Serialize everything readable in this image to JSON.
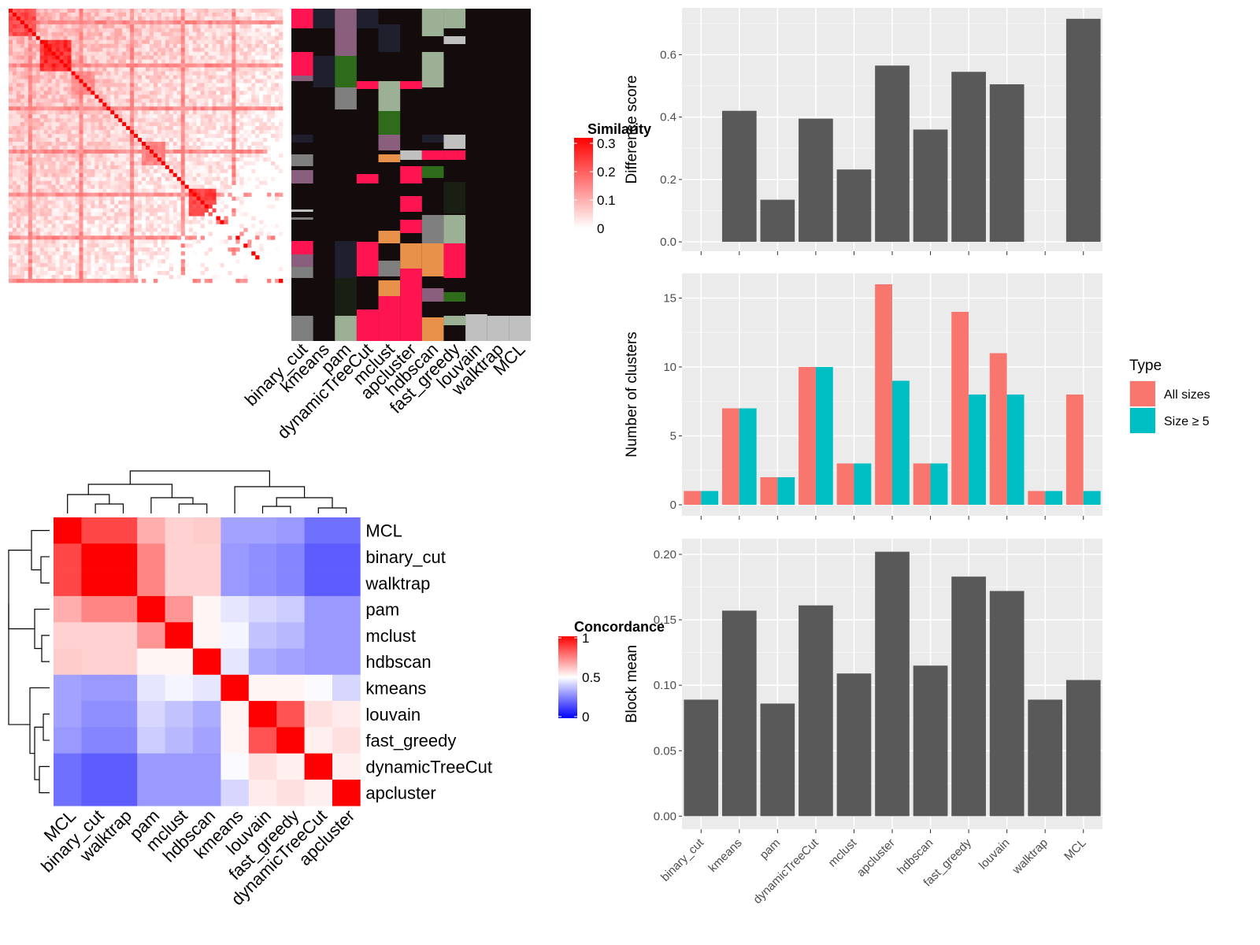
{
  "methods": [
    "binary_cut",
    "kmeans",
    "pam",
    "dynamicTreeCut",
    "mclust",
    "apcluster",
    "hdbscan",
    "fast_greedy",
    "louvain",
    "walktrap",
    "MCL"
  ],
  "similarity_heatmap": {
    "legend_title": "Similarity",
    "legend_ticks": [
      "0.3",
      "0.2",
      "0.1",
      "0"
    ],
    "colors": {
      "low": "#ffffff",
      "high": "#ff0000"
    }
  },
  "concordance_heatmap": {
    "legend_title": "Concordance",
    "legend_ticks": [
      "1",
      "0.5",
      "0"
    ],
    "row_labels": [
      "MCL",
      "binary_cut",
      "walktrap",
      "pam",
      "mclust",
      "hdbscan",
      "kmeans",
      "louvain",
      "fast_greedy",
      "dynamicTreeCut",
      "apcluster"
    ],
    "col_labels": [
      "MCL",
      "binary_cut",
      "walktrap",
      "pam",
      "mclust",
      "hdbscan",
      "kmeans",
      "louvain",
      "fast_greedy",
      "dynamicTreeCut",
      "apcluster"
    ],
    "matrix": [
      [
        1.0,
        0.86,
        0.86,
        0.66,
        0.59,
        0.6,
        0.32,
        0.32,
        0.3,
        0.22,
        0.22
      ],
      [
        0.86,
        1.0,
        1.0,
        0.74,
        0.59,
        0.59,
        0.3,
        0.28,
        0.26,
        0.18,
        0.18
      ],
      [
        0.86,
        1.0,
        1.0,
        0.74,
        0.59,
        0.59,
        0.3,
        0.28,
        0.26,
        0.18,
        0.18
      ],
      [
        0.66,
        0.74,
        0.74,
        1.0,
        0.71,
        0.52,
        0.45,
        0.42,
        0.4,
        0.3,
        0.3
      ],
      [
        0.59,
        0.59,
        0.59,
        0.71,
        1.0,
        0.52,
        0.48,
        0.38,
        0.36,
        0.3,
        0.3
      ],
      [
        0.6,
        0.59,
        0.59,
        0.52,
        0.52,
        1.0,
        0.45,
        0.34,
        0.32,
        0.3,
        0.3
      ],
      [
        0.32,
        0.3,
        0.3,
        0.45,
        0.48,
        0.45,
        1.0,
        0.52,
        0.52,
        0.49,
        0.42
      ],
      [
        0.32,
        0.28,
        0.28,
        0.42,
        0.38,
        0.34,
        0.52,
        1.0,
        0.84,
        0.56,
        0.54
      ],
      [
        0.3,
        0.26,
        0.26,
        0.4,
        0.36,
        0.32,
        0.52,
        0.84,
        1.0,
        0.53,
        0.56
      ],
      [
        0.22,
        0.18,
        0.18,
        0.3,
        0.3,
        0.3,
        0.49,
        0.56,
        0.53,
        1.0,
        0.53
      ],
      [
        0.22,
        0.18,
        0.18,
        0.3,
        0.3,
        0.3,
        0.42,
        0.54,
        0.56,
        0.53,
        1.0
      ]
    ],
    "colors": {
      "low": "#0000ff",
      "mid": "#ffffff",
      "high": "#ff0000"
    }
  },
  "chart_data": [
    {
      "type": "bar",
      "categories": [
        "binary_cut",
        "kmeans",
        "pam",
        "dynamicTreeCut",
        "mclust",
        "apcluster",
        "hdbscan",
        "fast_greedy",
        "louvain",
        "walktrap",
        "MCL"
      ],
      "values": [
        0,
        0.42,
        0.135,
        0.395,
        0.232,
        0.565,
        0.36,
        0.545,
        0.505,
        0,
        0.715
      ],
      "ylabel": "Difference score",
      "ylim": [
        -0.03,
        0.75
      ],
      "yticks": [
        "0.0",
        "0.2",
        "0.4",
        "0.6"
      ],
      "grid": true
    },
    {
      "type": "bar",
      "categories": [
        "binary_cut",
        "kmeans",
        "pam",
        "dynamicTreeCut",
        "mclust",
        "apcluster",
        "hdbscan",
        "fast_greedy",
        "louvain",
        "walktrap",
        "MCL"
      ],
      "ylabel": "Number of clusters",
      "ylim": [
        -0.8,
        16.8
      ],
      "yticks": [
        "0",
        "5",
        "10",
        "15"
      ],
      "legend": {
        "title": "Type",
        "position": "right"
      },
      "series": [
        {
          "name": "All sizes",
          "values": [
            1,
            7,
            2,
            10,
            3,
            16,
            3,
            14,
            11,
            1,
            8
          ],
          "color": "#f8766d"
        },
        {
          "name": "Size ≥ 5",
          "values": [
            1,
            7,
            2,
            10,
            3,
            9,
            3,
            8,
            8,
            1,
            1
          ],
          "color": "#00bfc4"
        }
      ],
      "grid": true
    },
    {
      "type": "bar",
      "categories": [
        "binary_cut",
        "kmeans",
        "pam",
        "dynamicTreeCut",
        "mclust",
        "apcluster",
        "hdbscan",
        "fast_greedy",
        "louvain",
        "walktrap",
        "MCL"
      ],
      "values": [
        0.089,
        0.157,
        0.086,
        0.161,
        0.109,
        0.202,
        0.115,
        0.183,
        0.172,
        0.089,
        0.104
      ],
      "ylabel": "Block mean",
      "ylim": [
        -0.01,
        0.212
      ],
      "yticks": [
        "0.00",
        "0.05",
        "0.10",
        "0.15",
        "0.20"
      ],
      "grid": true
    }
  ]
}
